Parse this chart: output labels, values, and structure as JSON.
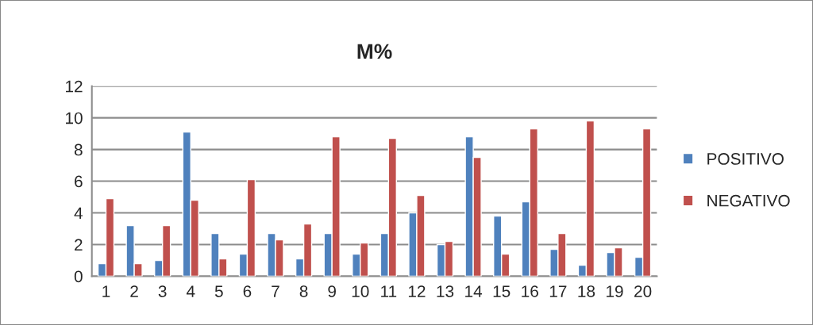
{
  "chart_data": {
    "type": "bar",
    "title": "M%",
    "categories": [
      "1",
      "2",
      "3",
      "4",
      "5",
      "6",
      "7",
      "8",
      "9",
      "10",
      "11",
      "12",
      "13",
      "14",
      "15",
      "16",
      "17",
      "18",
      "19",
      "20"
    ],
    "series": [
      {
        "name": "POSITIVO",
        "color": "#4f81bd",
        "values": [
          0.8,
          3.2,
          1.0,
          9.1,
          2.7,
          1.4,
          2.7,
          1.1,
          2.7,
          1.4,
          2.7,
          4.0,
          2.0,
          8.8,
          3.8,
          4.7,
          1.7,
          0.7,
          1.5,
          1.2
        ]
      },
      {
        "name": "NEGATIVO",
        "color": "#c0504d",
        "values": [
          4.9,
          0.8,
          3.2,
          4.8,
          1.1,
          6.1,
          2.3,
          3.3,
          8.8,
          2.1,
          8.7,
          5.1,
          2.2,
          7.5,
          1.4,
          9.3,
          2.7,
          9.8,
          1.8,
          9.3
        ]
      }
    ],
    "ylim": [
      0,
      12
    ],
    "yticks": [
      0,
      2,
      4,
      6,
      8,
      10,
      12
    ],
    "grid": "y",
    "legend": "right"
  }
}
